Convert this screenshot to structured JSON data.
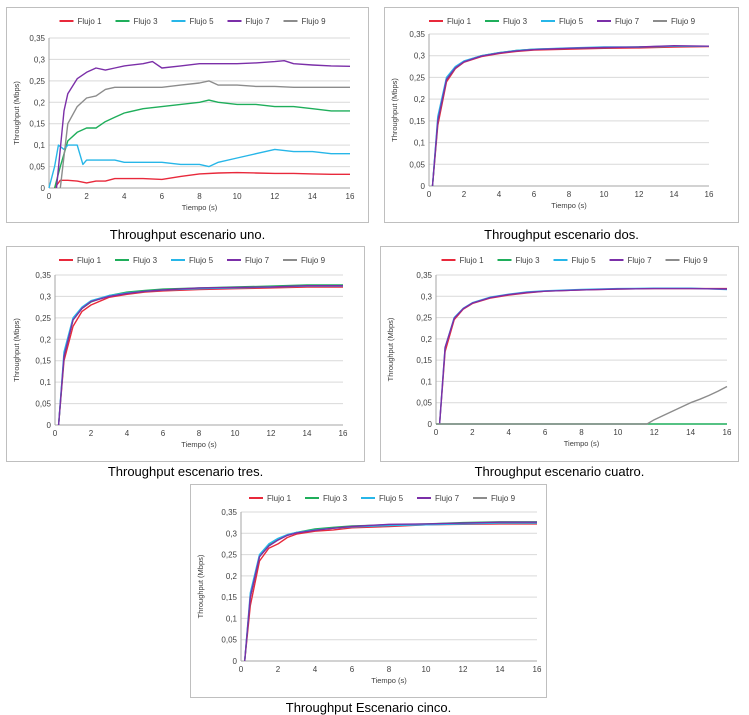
{
  "colors": {
    "Flujo 1": "#e8293b",
    "Flujo 3": "#1fae5b",
    "Flujo 5": "#27b6e8",
    "Flujo 7": "#7b2fa8",
    "Flujo 9": "#8c8c8c"
  },
  "legend": [
    "Flujo 1",
    "Flujo 3",
    "Flujo 5",
    "Flujo 7",
    "Flujo 9"
  ],
  "chart_data": [
    {
      "type": "line",
      "caption": "Throughput escenario uno.",
      "xlabel": "Tiempo (s)",
      "ylabel": "Throughput (Mbps)",
      "xlim": [
        0,
        16
      ],
      "ylim": [
        0,
        0.35
      ],
      "xticks": [
        "0",
        "2",
        "4",
        "6",
        "8",
        "10",
        "12",
        "14",
        "16"
      ],
      "yticks": [
        "0",
        "0,05",
        "0,1",
        "0,15",
        "0,2",
        "0,25",
        "0,3",
        "0,35"
      ],
      "legend_position": "top",
      "series": [
        {
          "name": "Flujo 1",
          "x": [
            0.3,
            0.6,
            1,
            1.5,
            2,
            2.5,
            3,
            3.5,
            4,
            5,
            6,
            7,
            8,
            9,
            10,
            11,
            12,
            13,
            14,
            15,
            16
          ],
          "y": [
            0,
            0.018,
            0.018,
            0.016,
            0.012,
            0.016,
            0.016,
            0.022,
            0.022,
            0.022,
            0.02,
            0.027,
            0.033,
            0.035,
            0.036,
            0.035,
            0.034,
            0.034,
            0.033,
            0.032,
            0.032
          ]
        },
        {
          "name": "Flujo 3",
          "x": [
            0.3,
            0.6,
            1,
            1.5,
            2,
            2.5,
            3,
            3.5,
            4,
            5,
            6,
            7,
            8,
            8.5,
            9,
            10,
            11,
            12,
            13,
            14,
            15,
            16
          ],
          "y": [
            0,
            0.05,
            0.11,
            0.13,
            0.14,
            0.14,
            0.155,
            0.165,
            0.175,
            0.185,
            0.19,
            0.195,
            0.2,
            0.205,
            0.2,
            0.195,
            0.195,
            0.19,
            0.19,
            0.185,
            0.18,
            0.18
          ]
        },
        {
          "name": "Flujo 5",
          "x": [
            0,
            0.3,
            0.5,
            0.8,
            1,
            1.5,
            1.8,
            2,
            2.5,
            3,
            3.5,
            4,
            4.5,
            5,
            6,
            7,
            8,
            8.5,
            9,
            10,
            11,
            12,
            13,
            14,
            15,
            16
          ],
          "y": [
            0,
            0.05,
            0.1,
            0.09,
            0.1,
            0.1,
            0.055,
            0.065,
            0.065,
            0.065,
            0.065,
            0.06,
            0.06,
            0.06,
            0.06,
            0.055,
            0.055,
            0.05,
            0.06,
            0.07,
            0.08,
            0.09,
            0.085,
            0.085,
            0.08,
            0.08
          ]
        },
        {
          "name": "Flujo 7",
          "x": [
            0.4,
            0.8,
            1,
            1.5,
            2,
            2.5,
            3,
            3.5,
            4,
            5,
            5.5,
            6,
            7,
            8,
            9,
            10,
            11,
            12,
            12.5,
            13,
            14,
            15,
            16
          ],
          "y": [
            0,
            0.18,
            0.22,
            0.255,
            0.27,
            0.28,
            0.275,
            0.28,
            0.285,
            0.29,
            0.295,
            0.28,
            0.285,
            0.29,
            0.29,
            0.29,
            0.292,
            0.295,
            0.297,
            0.29,
            0.287,
            0.285,
            0.284
          ]
        },
        {
          "name": "Flujo 9",
          "x": [
            0.6,
            1,
            1.5,
            2,
            2.5,
            3,
            3.5,
            4,
            5,
            6,
            7,
            8,
            8.5,
            9,
            10,
            11,
            12,
            13,
            14,
            15,
            16
          ],
          "y": [
            0,
            0.15,
            0.19,
            0.21,
            0.215,
            0.23,
            0.235,
            0.235,
            0.235,
            0.235,
            0.24,
            0.245,
            0.25,
            0.24,
            0.24,
            0.237,
            0.237,
            0.235,
            0.235,
            0.235,
            0.235
          ]
        }
      ]
    },
    {
      "type": "line",
      "caption": "Throughput escenario dos.",
      "xlabel": "Tiempo (s)",
      "ylabel": "Throughput (Mbps)",
      "xlim": [
        0,
        16
      ],
      "ylim": [
        0,
        0.35
      ],
      "xticks": [
        "0",
        "2",
        "4",
        "6",
        "8",
        "10",
        "12",
        "14",
        "16"
      ],
      "yticks": [
        "0",
        "0,05",
        "0,1",
        "0,15",
        "0,2",
        "0,25",
        "0,3",
        "0,35"
      ],
      "legend_position": "top",
      "series": [
        {
          "name": "Flujo 1",
          "x": [
            0.2,
            0.5,
            1,
            1.5,
            2,
            3,
            4,
            5,
            6,
            8,
            10,
            12,
            14,
            16
          ],
          "y": [
            0,
            0.14,
            0.24,
            0.27,
            0.285,
            0.298,
            0.305,
            0.31,
            0.313,
            0.315,
            0.317,
            0.318,
            0.32,
            0.321
          ]
        },
        {
          "name": "Flujo 3",
          "x": [
            0.2,
            0.5,
            1,
            1.5,
            2,
            3,
            4,
            5,
            6,
            8,
            10,
            12,
            14,
            16
          ],
          "y": [
            0,
            0.15,
            0.245,
            0.272,
            0.287,
            0.3,
            0.307,
            0.312,
            0.315,
            0.317,
            0.319,
            0.32,
            0.322,
            0.322
          ]
        },
        {
          "name": "Flujo 5",
          "x": [
            0.2,
            0.5,
            1,
            1.5,
            2,
            3,
            4,
            5,
            6,
            8,
            10,
            12,
            14,
            16
          ],
          "y": [
            0,
            0.16,
            0.25,
            0.275,
            0.288,
            0.3,
            0.307,
            0.312,
            0.315,
            0.318,
            0.32,
            0.32,
            0.322,
            0.322
          ]
        },
        {
          "name": "Flujo 7",
          "x": [
            0.2,
            0.5,
            1,
            1.5,
            2,
            3,
            4,
            5,
            6,
            8,
            10,
            12,
            14,
            16
          ],
          "y": [
            0,
            0.15,
            0.245,
            0.272,
            0.286,
            0.299,
            0.306,
            0.311,
            0.314,
            0.317,
            0.319,
            0.32,
            0.323,
            0.322
          ]
        }
      ]
    },
    {
      "type": "line",
      "caption": "Throughput escenario tres.",
      "xlabel": "Tiempo (s)",
      "ylabel": "Throughput (Mbps)",
      "xlim": [
        0,
        16
      ],
      "ylim": [
        0,
        0.35
      ],
      "xticks": [
        "0",
        "2",
        "4",
        "6",
        "8",
        "10",
        "12",
        "14",
        "16"
      ],
      "yticks": [
        "0",
        "0,05",
        "0,1",
        "0,15",
        "0,2",
        "0,25",
        "0,3",
        "0,35"
      ],
      "legend_position": "top",
      "series": [
        {
          "name": "Flujo 1",
          "x": [
            0.2,
            0.5,
            1,
            1.5,
            2,
            3,
            4,
            5,
            6,
            8,
            10,
            12,
            14,
            16
          ],
          "y": [
            0,
            0.15,
            0.23,
            0.265,
            0.28,
            0.298,
            0.305,
            0.31,
            0.313,
            0.316,
            0.318,
            0.32,
            0.322,
            0.322
          ]
        },
        {
          "name": "Flujo 3",
          "x": [
            0.2,
            0.5,
            1,
            1.5,
            2,
            3,
            4,
            5,
            6,
            8,
            10,
            12,
            14,
            16
          ],
          "y": [
            0,
            0.16,
            0.245,
            0.272,
            0.287,
            0.302,
            0.31,
            0.314,
            0.317,
            0.32,
            0.322,
            0.324,
            0.327,
            0.327
          ]
        },
        {
          "name": "Flujo 5",
          "x": [
            0.2,
            0.5,
            1,
            1.5,
            2,
            3,
            4,
            5,
            6,
            8,
            10,
            12,
            14,
            16
          ],
          "y": [
            0,
            0.17,
            0.25,
            0.275,
            0.29,
            0.302,
            0.308,
            0.312,
            0.315,
            0.318,
            0.32,
            0.322,
            0.324,
            0.324
          ]
        },
        {
          "name": "Flujo 7",
          "x": [
            0.2,
            0.5,
            1,
            1.5,
            2,
            3,
            4,
            5,
            6,
            8,
            10,
            12,
            14,
            16
          ],
          "y": [
            0,
            0.16,
            0.245,
            0.272,
            0.288,
            0.3,
            0.307,
            0.312,
            0.315,
            0.32,
            0.321,
            0.322,
            0.325,
            0.325
          ]
        }
      ]
    },
    {
      "type": "line",
      "caption": "Throughput escenario cuatro.",
      "xlabel": "Tiempo (s)",
      "ylabel": "Throughput (Mbps)",
      "xlim": [
        0,
        16
      ],
      "ylim": [
        0,
        0.35
      ],
      "xticks": [
        "0",
        "2",
        "4",
        "6",
        "8",
        "10",
        "12",
        "14",
        "16"
      ],
      "yticks": [
        "0",
        "0,05",
        "0,1",
        "0,15",
        "0,2",
        "0,25",
        "0,3",
        "0,35"
      ],
      "legend_position": "top",
      "series": [
        {
          "name": "Flujo 1",
          "x": [
            0.2,
            0.5,
            1,
            1.5,
            2,
            3,
            4,
            5,
            6,
            8,
            10,
            12,
            14,
            16
          ],
          "y": [
            0,
            0.17,
            0.245,
            0.27,
            0.283,
            0.296,
            0.303,
            0.308,
            0.312,
            0.315,
            0.317,
            0.318,
            0.318,
            0.318
          ]
        },
        {
          "name": "Flujo 3",
          "x": [
            0,
            16
          ],
          "y": [
            0,
            0
          ]
        },
        {
          "name": "Flujo 5",
          "x": [
            0.2,
            0.5,
            1,
            1.5,
            2,
            3,
            4,
            5,
            6,
            8,
            10,
            12,
            14,
            16
          ],
          "y": [
            0,
            0.18,
            0.25,
            0.272,
            0.285,
            0.298,
            0.305,
            0.31,
            0.313,
            0.316,
            0.318,
            0.319,
            0.319,
            0.316
          ]
        },
        {
          "name": "Flujo 7",
          "x": [
            0.2,
            0.5,
            1,
            1.5,
            2,
            3,
            4,
            5,
            6,
            8,
            10,
            12,
            14,
            16
          ],
          "y": [
            0,
            0.18,
            0.248,
            0.271,
            0.284,
            0.297,
            0.304,
            0.309,
            0.312,
            0.315,
            0.317,
            0.318,
            0.318,
            0.317
          ]
        },
        {
          "name": "Flujo 9",
          "x": [
            0,
            11.6,
            12,
            12.5,
            13,
            13.5,
            14,
            14.5,
            15,
            15.5,
            16
          ],
          "y": [
            0,
            0,
            0.01,
            0.02,
            0.03,
            0.04,
            0.05,
            0.058,
            0.067,
            0.077,
            0.088
          ]
        }
      ]
    },
    {
      "type": "line",
      "caption": "Throughput Escenario cinco.",
      "xlabel": "Tiempo (s)",
      "ylabel": "Throughput (Mbps)",
      "xlim": [
        0,
        16
      ],
      "ylim": [
        0,
        0.35
      ],
      "xticks": [
        "0",
        "2",
        "4",
        "6",
        "8",
        "10",
        "12",
        "14",
        "16"
      ],
      "yticks": [
        "0",
        "0,05",
        "0,1",
        "0,15",
        "0,2",
        "0,25",
        "0,3",
        "0,35"
      ],
      "legend_position": "top",
      "series": [
        {
          "name": "Flujo 1",
          "x": [
            0.2,
            0.5,
            1,
            1.5,
            2,
            2.5,
            3,
            4,
            5,
            6,
            8,
            10,
            12,
            14,
            16
          ],
          "y": [
            0,
            0.13,
            0.235,
            0.265,
            0.275,
            0.29,
            0.298,
            0.305,
            0.308,
            0.313,
            0.316,
            0.32,
            0.321,
            0.322,
            0.322
          ]
        },
        {
          "name": "Flujo 3",
          "x": [
            0.2,
            0.5,
            1,
            1.5,
            2,
            2.5,
            3,
            4,
            5,
            6,
            8,
            10,
            12,
            14,
            16
          ],
          "y": [
            0,
            0.15,
            0.245,
            0.272,
            0.285,
            0.296,
            0.302,
            0.31,
            0.314,
            0.317,
            0.32,
            0.322,
            0.325,
            0.327,
            0.327
          ]
        },
        {
          "name": "Flujo 5",
          "x": [
            0.2,
            0.5,
            1,
            1.5,
            2,
            2.5,
            3,
            4,
            5,
            6,
            8,
            10,
            12,
            14,
            16
          ],
          "y": [
            0,
            0.16,
            0.25,
            0.275,
            0.288,
            0.297,
            0.302,
            0.308,
            0.312,
            0.315,
            0.318,
            0.32,
            0.322,
            0.324,
            0.324
          ]
        },
        {
          "name": "Flujo 7",
          "x": [
            0.2,
            0.5,
            1,
            1.5,
            2,
            2.5,
            3,
            4,
            5,
            6,
            8,
            10,
            12,
            14,
            16
          ],
          "y": [
            0,
            0.15,
            0.245,
            0.27,
            0.284,
            0.295,
            0.301,
            0.307,
            0.312,
            0.316,
            0.321,
            0.322,
            0.324,
            0.326,
            0.326
          ]
        }
      ]
    }
  ]
}
